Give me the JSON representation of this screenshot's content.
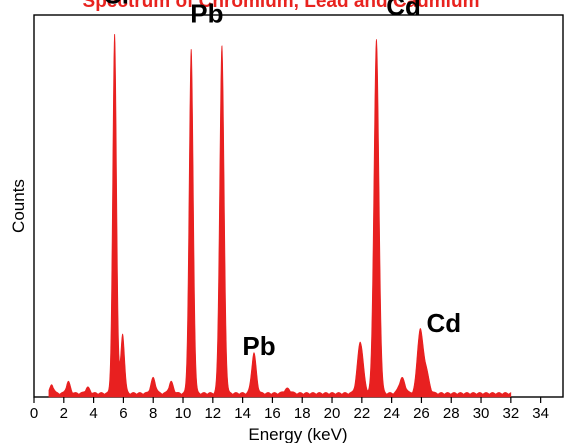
{
  "chart_data": {
    "type": "area",
    "title": "Spectrum of Chromium, Lead and Cadmium",
    "xlabel": "Energy (keV)",
    "ylabel": "Counts",
    "xlim": [
      0,
      35.5
    ],
    "ylim": [
      0,
      100
    ],
    "x_ticks": [
      0,
      2,
      4,
      6,
      8,
      10,
      12,
      14,
      16,
      18,
      20,
      22,
      24,
      26,
      28,
      30,
      32,
      34
    ],
    "y_ticks_shown": false,
    "grid": false,
    "colors": {
      "fill": "#e82020",
      "title": "#e8231f",
      "frame": "#000000"
    },
    "series": [
      {
        "peaks": [
          {
            "x": 1.2,
            "h": 2.2,
            "w": 0.13
          },
          {
            "x": 2.3,
            "h": 3.0,
            "w": 0.14
          },
          {
            "x": 3.6,
            "h": 1.5,
            "w": 0.15
          },
          {
            "x": 5.41,
            "h": 94.0,
            "w": 0.13
          },
          {
            "x": 5.95,
            "h": 15.5,
            "w": 0.13
          },
          {
            "x": 8.0,
            "h": 4.0,
            "w": 0.16
          },
          {
            "x": 9.2,
            "h": 3.0,
            "w": 0.15
          },
          {
            "x": 10.55,
            "h": 90.0,
            "w": 0.14
          },
          {
            "x": 12.61,
            "h": 91.0,
            "w": 0.15
          },
          {
            "x": 14.76,
            "h": 10.5,
            "w": 0.16
          },
          {
            "x": 17.0,
            "h": 1.2,
            "w": 0.2
          },
          {
            "x": 21.9,
            "h": 13.5,
            "w": 0.2
          },
          {
            "x": 22.98,
            "h": 92.5,
            "w": 0.17
          },
          {
            "x": 24.7,
            "h": 4.0,
            "w": 0.2
          },
          {
            "x": 25.9,
            "h": 16.0,
            "w": 0.19
          },
          {
            "x": 26.3,
            "h": 6.0,
            "w": 0.2
          }
        ],
        "baseline": 1.2
      }
    ],
    "annotations": [
      {
        "text": "Cr",
        "x": 5.6,
        "y": 103
      },
      {
        "text": "Pb",
        "x": 11.6,
        "y": 98
      },
      {
        "text": "Pb",
        "x": 15.1,
        "y": 11
      },
      {
        "text": "Cd",
        "x": 24.8,
        "y": 100
      },
      {
        "text": "Cd",
        "x": 27.5,
        "y": 17
      }
    ]
  }
}
